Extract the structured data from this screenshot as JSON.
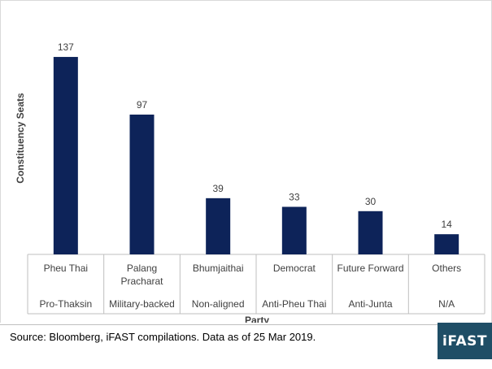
{
  "colors": {
    "bar": "#0d2359",
    "logo_bg": "#1f4e66",
    "axis": "#bfbfbf",
    "text": "#404040"
  },
  "chart_data": {
    "type": "bar",
    "categories": [
      "Pheu Thai",
      "Palang Pracharat",
      "Bhumjaithai",
      "Democrat",
      "Future Forward",
      "Others"
    ],
    "category_lines": [
      [
        "Pheu Thai"
      ],
      [
        "Palang",
        "Pracharat"
      ],
      [
        "Bhumjaithai"
      ],
      [
        "Democrat"
      ],
      [
        "Future Forward"
      ],
      [
        "Others"
      ]
    ],
    "groups": [
      "Pro-Thaksin",
      "Military-backed",
      "Non-aligned",
      "Anti-Pheu Thai",
      "Anti-Junta",
      "N/A"
    ],
    "values": [
      137,
      97,
      39,
      33,
      30,
      14
    ],
    "value_labels": [
      "137",
      "97",
      "39",
      "33",
      "30",
      "14"
    ],
    "xlabel": "Party",
    "ylabel": "Constituency Seats",
    "ylim": [
      0,
      150
    ],
    "grid": false,
    "data_labels": true
  },
  "footer": {
    "source": "Source: Bloomberg, iFAST compilations. Data as of 25 Mar 2019.",
    "logo_text": "iFAST"
  }
}
